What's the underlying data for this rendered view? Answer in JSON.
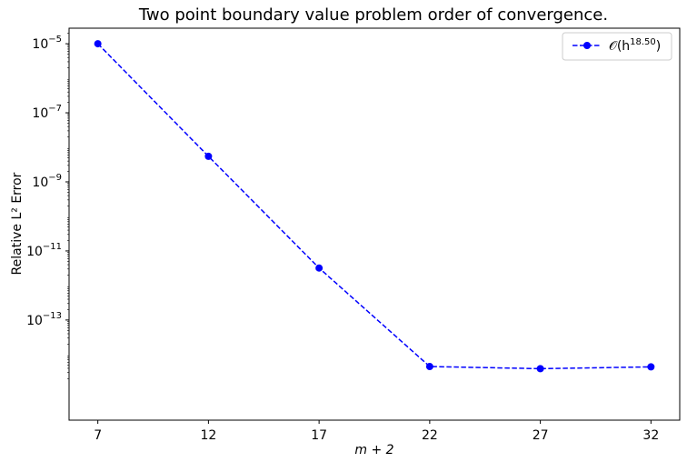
{
  "chart_data": {
    "type": "line",
    "title": "Two point boundary value problem order of convergence.",
    "xlabel": "m + 2",
    "ylabel": "Relative L² Error",
    "yscale": "log",
    "xlim": [
      5.7,
      33.3
    ],
    "ylim_log10": [
      -15.9,
      -4.55
    ],
    "x_ticks": [
      7,
      12,
      17,
      22,
      27,
      32
    ],
    "y_ticks": [
      {
        "exp": -5,
        "label": "10",
        "sup": "−5"
      },
      {
        "exp": -7,
        "label": "10",
        "sup": "−7"
      },
      {
        "exp": -9,
        "label": "10",
        "sup": "−9"
      },
      {
        "exp": -11,
        "label": "10",
        "sup": "−11"
      },
      {
        "exp": -13,
        "label": "10",
        "sup": "−13"
      }
    ],
    "series": [
      {
        "name": "𝒪(h",
        "name_sup": "18.50",
        "name_suffix": ")",
        "color": "#0000ff",
        "linestyle": "dashed",
        "marker": "circle",
        "x": [
          7,
          12,
          17,
          22,
          27,
          32
        ],
        "y": [
          1e-05,
          5.5e-09,
          3.2e-12,
          4.5e-15,
          3.9e-15,
          4.4e-15
        ]
      }
    ],
    "legend_position": "top-right",
    "grid": false
  }
}
